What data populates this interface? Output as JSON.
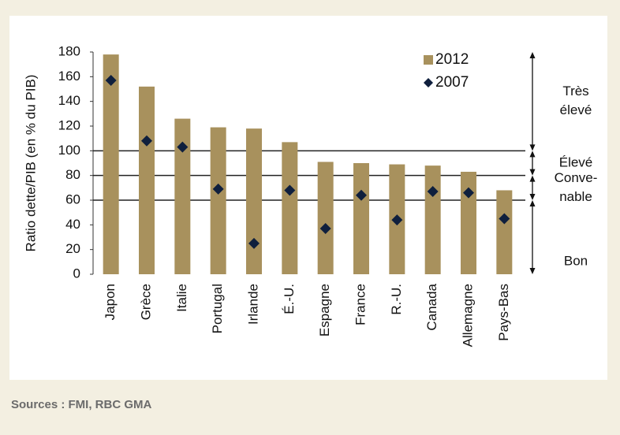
{
  "chart_data": {
    "type": "bar",
    "y_label": "Ratio dette/PIB (en % du PIB)",
    "categories": [
      "Japon",
      "Grèce",
      "Italie",
      "Portugal",
      "Irlande",
      "É.-U.",
      "Espagne",
      "France",
      "R.-U.",
      "Canada",
      "Allemagne",
      "Pays-Bas"
    ],
    "series": [
      {
        "name": "2012",
        "type": "bar",
        "color": "#a8915d",
        "values": [
          178,
          152,
          126,
          119,
          118,
          107,
          91,
          90,
          89,
          88,
          83,
          68
        ]
      },
      {
        "name": "2007",
        "type": "scatter",
        "color": "#0f1f3d",
        "values": [
          157,
          108,
          103,
          69,
          25,
          68,
          37,
          64,
          44,
          67,
          66,
          45
        ]
      }
    ],
    "ylim": [
      0,
      180
    ],
    "yticks": [
      0,
      20,
      40,
      60,
      80,
      100,
      120,
      140,
      160,
      180
    ],
    "reference_lines": [
      100,
      80,
      60
    ],
    "zones": [
      {
        "lines": [
          "Très",
          "élevé"
        ],
        "from": 100,
        "to": 180
      },
      {
        "lines": [
          "Élevé"
        ],
        "from": 80,
        "to": 100
      },
      {
        "lines": [
          "Conve-",
          "nable"
        ],
        "from": 60,
        "to": 80
      },
      {
        "lines": [
          "Bon"
        ],
        "from": 0,
        "to": 60
      }
    ],
    "legend": "top-right",
    "source": "Sources : FMI, RBC GMA"
  }
}
